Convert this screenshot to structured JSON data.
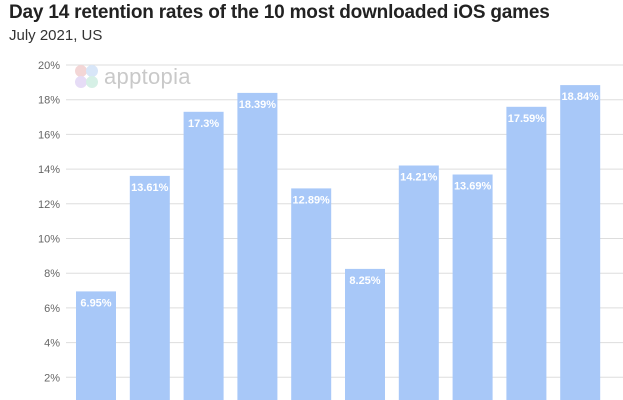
{
  "header": {
    "title": "Day 14 retention rates of the 10 most downloaded iOS games",
    "subtitle": "July 2021, US"
  },
  "watermark": {
    "text": "apptopia"
  },
  "colors": {
    "bar": "#a8c8f8",
    "grid": "#dddddd",
    "tick_text": "#666666",
    "label_text": "#ffffff"
  },
  "chart_data": {
    "type": "bar",
    "title": "Day 14 retention rates of the 10 most downloaded iOS games",
    "subtitle": "July 2021, US",
    "xlabel": "",
    "ylabel": "",
    "ylim": [
      0,
      20
    ],
    "grid": true,
    "yticks": [
      "2%",
      "4%",
      "6%",
      "8%",
      "10%",
      "12%",
      "14%",
      "16%",
      "18%",
      "20%"
    ],
    "values": [
      6.95,
      13.61,
      17.3,
      18.39,
      12.89,
      8.25,
      14.21,
      13.69,
      17.59,
      18.84
    ],
    "value_labels": [
      "6.95%",
      "13.61%",
      "17.3%",
      "18.39%",
      "12.89%",
      "8.25%",
      "14.21%",
      "13.69%",
      "17.59%",
      "18.84%"
    ]
  }
}
